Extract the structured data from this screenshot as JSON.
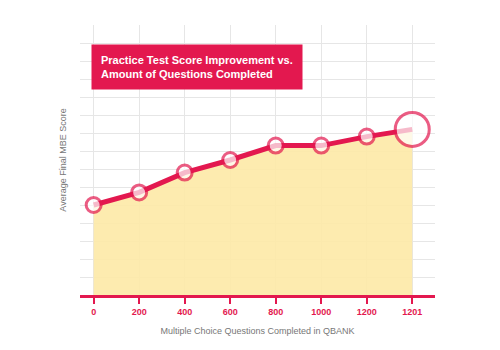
{
  "chart_data": {
    "type": "line",
    "title": "Practice Test Score Improvement vs.\nAmount of Questions Completed",
    "xlabel": "Multiple Choice Questions Completed in QBANK",
    "ylabel": "Average Final MBE Score",
    "categories": [
      "0",
      "200",
      "400",
      "600",
      "800",
      "1000",
      "1200",
      "1201"
    ],
    "values": [
      5.0,
      5.7,
      6.8,
      7.5,
      8.3,
      8.3,
      8.8,
      9.2
    ],
    "color": "#e3184f",
    "ylim": [
      0,
      15
    ],
    "yticks": [
      0,
      1,
      2,
      3,
      4,
      5,
      6,
      7,
      8,
      9,
      10,
      11,
      12,
      13,
      14,
      15
    ],
    "grid": true,
    "tick_labels": "x",
    "marker": "circle"
  }
}
